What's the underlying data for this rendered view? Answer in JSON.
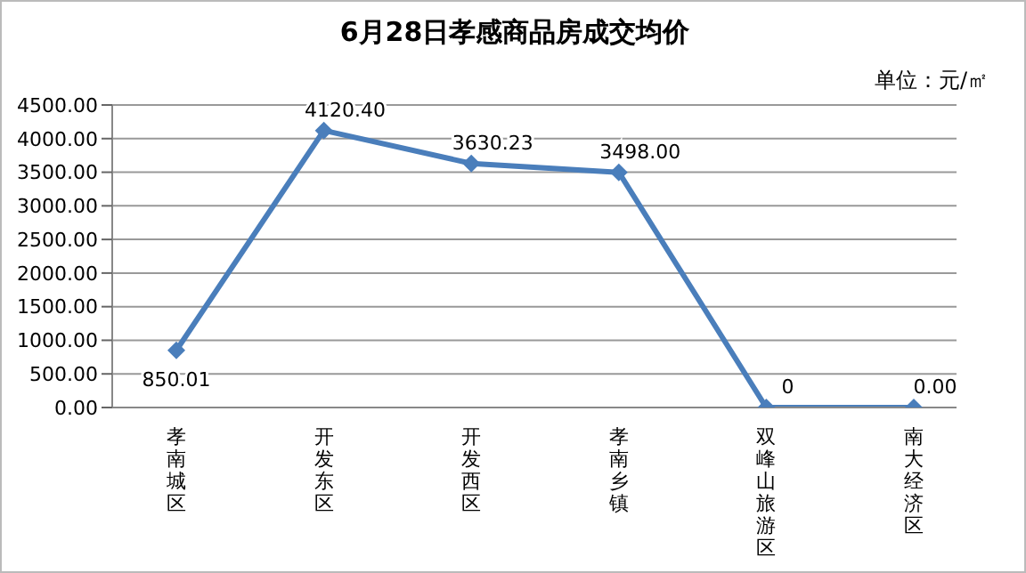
{
  "chart_data": {
    "type": "line",
    "title": "6月28日孝感商品房成交均价",
    "ylabel": "单位：元/㎡",
    "categories": [
      "孝南城区",
      "开发东区",
      "开发西区",
      "孝南乡镇",
      "双峰山旅游区",
      "南大经济区"
    ],
    "series": [
      {
        "color": "#4a7ebb",
        "values": [
          850.01,
          4120.4,
          3630.23,
          3498.0,
          0,
          0.0
        ],
        "value_labels": [
          "850.01",
          "4120.40",
          "3630.23",
          "3498.00",
          "0",
          "0.00"
        ]
      }
    ],
    "ylim": [
      0,
      4500
    ],
    "yticks": [
      {
        "value": 0,
        "label": "0.00"
      },
      {
        "value": 500,
        "label": "500.00"
      },
      {
        "value": 1000,
        "label": "1000.00"
      },
      {
        "value": 1500,
        "label": "1500.00"
      },
      {
        "value": 2000,
        "label": "2000.00"
      },
      {
        "value": 2500,
        "label": "2500.00"
      },
      {
        "value": 3000,
        "label": "3000.00"
      },
      {
        "value": 3500,
        "label": "3500.00"
      },
      {
        "value": 4000,
        "label": "4000.00"
      },
      {
        "value": 4500,
        "label": "4500.00"
      }
    ],
    "grid": "y",
    "marker": "diamond",
    "line_style": "solid",
    "legend": false
  }
}
